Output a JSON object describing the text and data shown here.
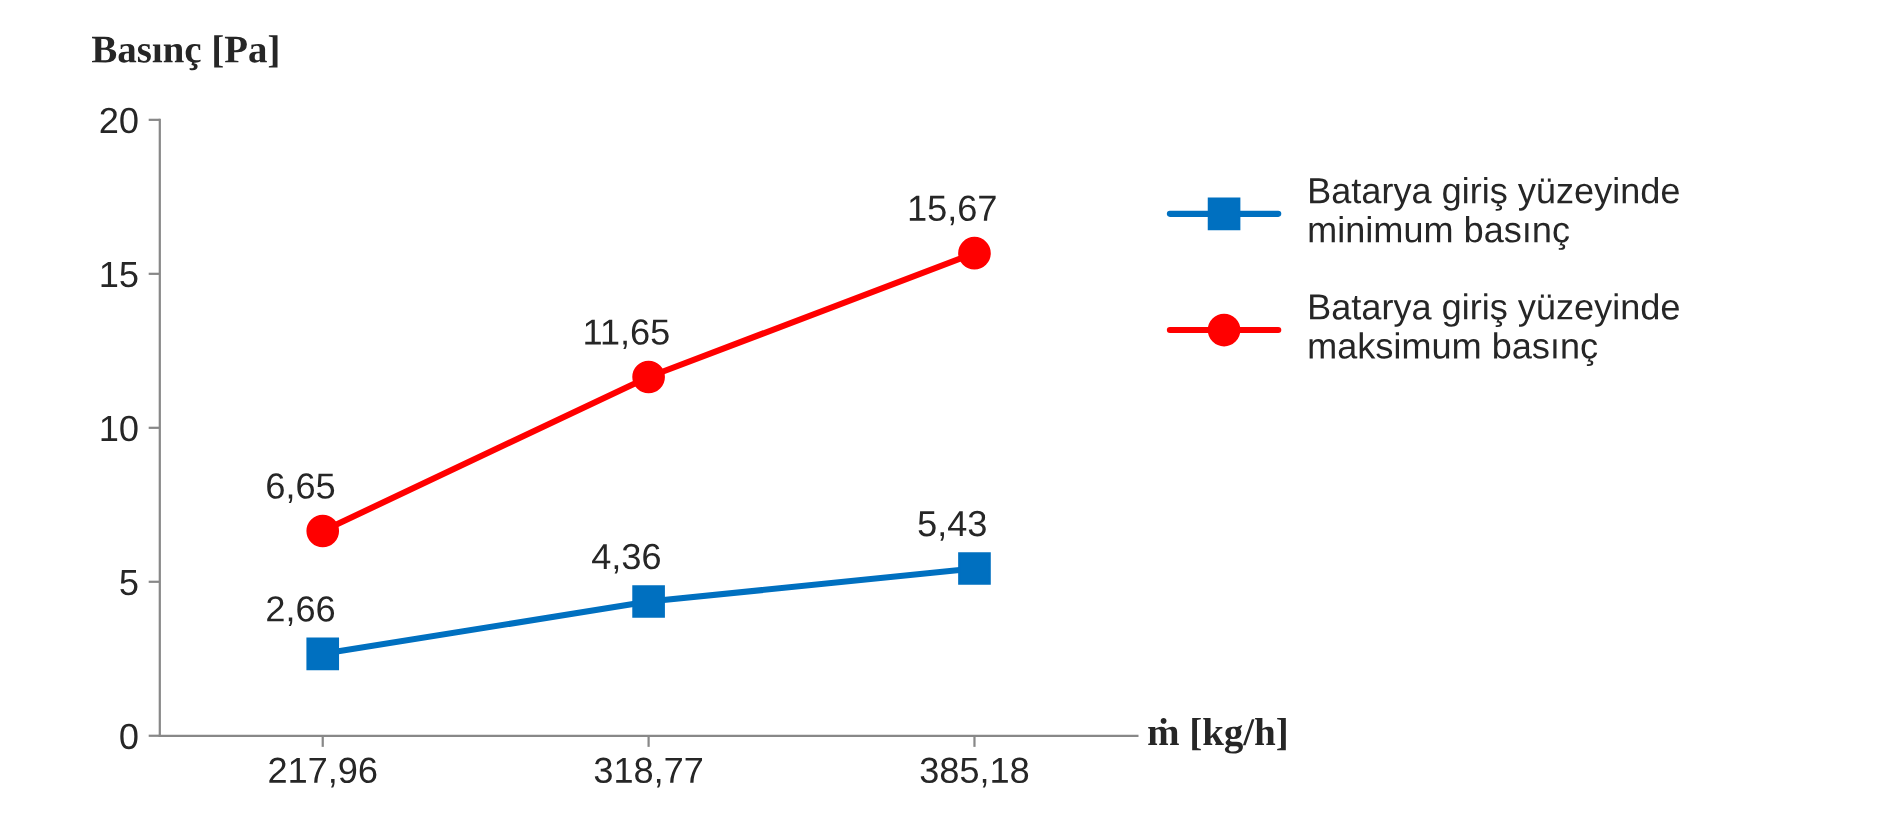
{
  "chart_data": {
    "type": "line",
    "xlabel": "ṁ [kg/h]",
    "ylabel": "Basınç [Pa]",
    "categories": [
      "217,96",
      "318,77",
      "385,18"
    ],
    "series": [
      {
        "name": "Batarya giriş yüzeyinde minimum basınç",
        "color": "#0070c0",
        "marker": "square",
        "values": [
          2.66,
          4.36,
          5.43
        ],
        "value_labels": [
          "2,66",
          "4,36",
          "5,43"
        ]
      },
      {
        "name": "Batarya giriş yüzeyinde maksimum basınç",
        "color": "#ff0000",
        "marker": "circle",
        "values": [
          6.65,
          11.65,
          15.67
        ],
        "value_labels": [
          "6,65",
          "11,65",
          "15,67"
        ]
      }
    ],
    "ylim": [
      0,
      20
    ],
    "yticks": [
      0,
      5,
      10,
      15,
      20
    ],
    "grid": false,
    "legend": "right",
    "line_style": "solid"
  }
}
